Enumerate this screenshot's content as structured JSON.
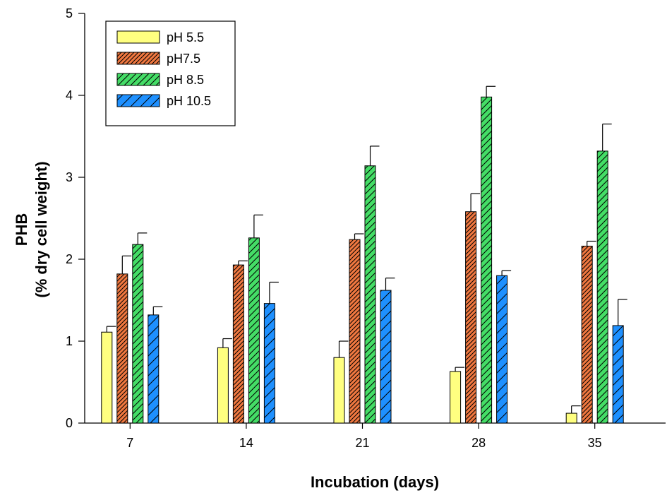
{
  "chart_data": {
    "type": "bar",
    "title": "",
    "xlabel": "Incubation (days)",
    "ylabel_line1": "PHB",
    "ylabel_line2": "(% dry cell weight)",
    "ylim": [
      0,
      5
    ],
    "yticks": [
      "0",
      "1",
      "2",
      "3",
      "4",
      "5"
    ],
    "categories": [
      "7",
      "14",
      "21",
      "28",
      "35"
    ],
    "legend_position": "top-left",
    "grid": false,
    "series": [
      {
        "name": "pH 5.5",
        "color": "#ffff80",
        "hatch": "none",
        "values": [
          1.11,
          0.92,
          0.8,
          0.63,
          0.12
        ],
        "errors": [
          0.07,
          0.11,
          0.2,
          0.05,
          0.09
        ]
      },
      {
        "name": "pH7.5",
        "color": "#f07840",
        "hatch": "dense",
        "values": [
          1.82,
          1.93,
          2.24,
          2.58,
          2.16
        ],
        "errors": [
          0.22,
          0.05,
          0.07,
          0.22,
          0.06
        ]
      },
      {
        "name": "pH 8.5",
        "color": "#44dd66",
        "hatch": "medium",
        "values": [
          2.18,
          2.26,
          3.14,
          3.98,
          3.32
        ],
        "errors": [
          0.14,
          0.28,
          0.24,
          0.13,
          0.33
        ]
      },
      {
        "name": "pH 10.5",
        "color": "#1e90ff",
        "hatch": "sparse",
        "values": [
          1.32,
          1.46,
          1.62,
          1.8,
          1.19
        ],
        "errors": [
          0.1,
          0.26,
          0.15,
          0.06,
          0.32
        ]
      }
    ]
  }
}
